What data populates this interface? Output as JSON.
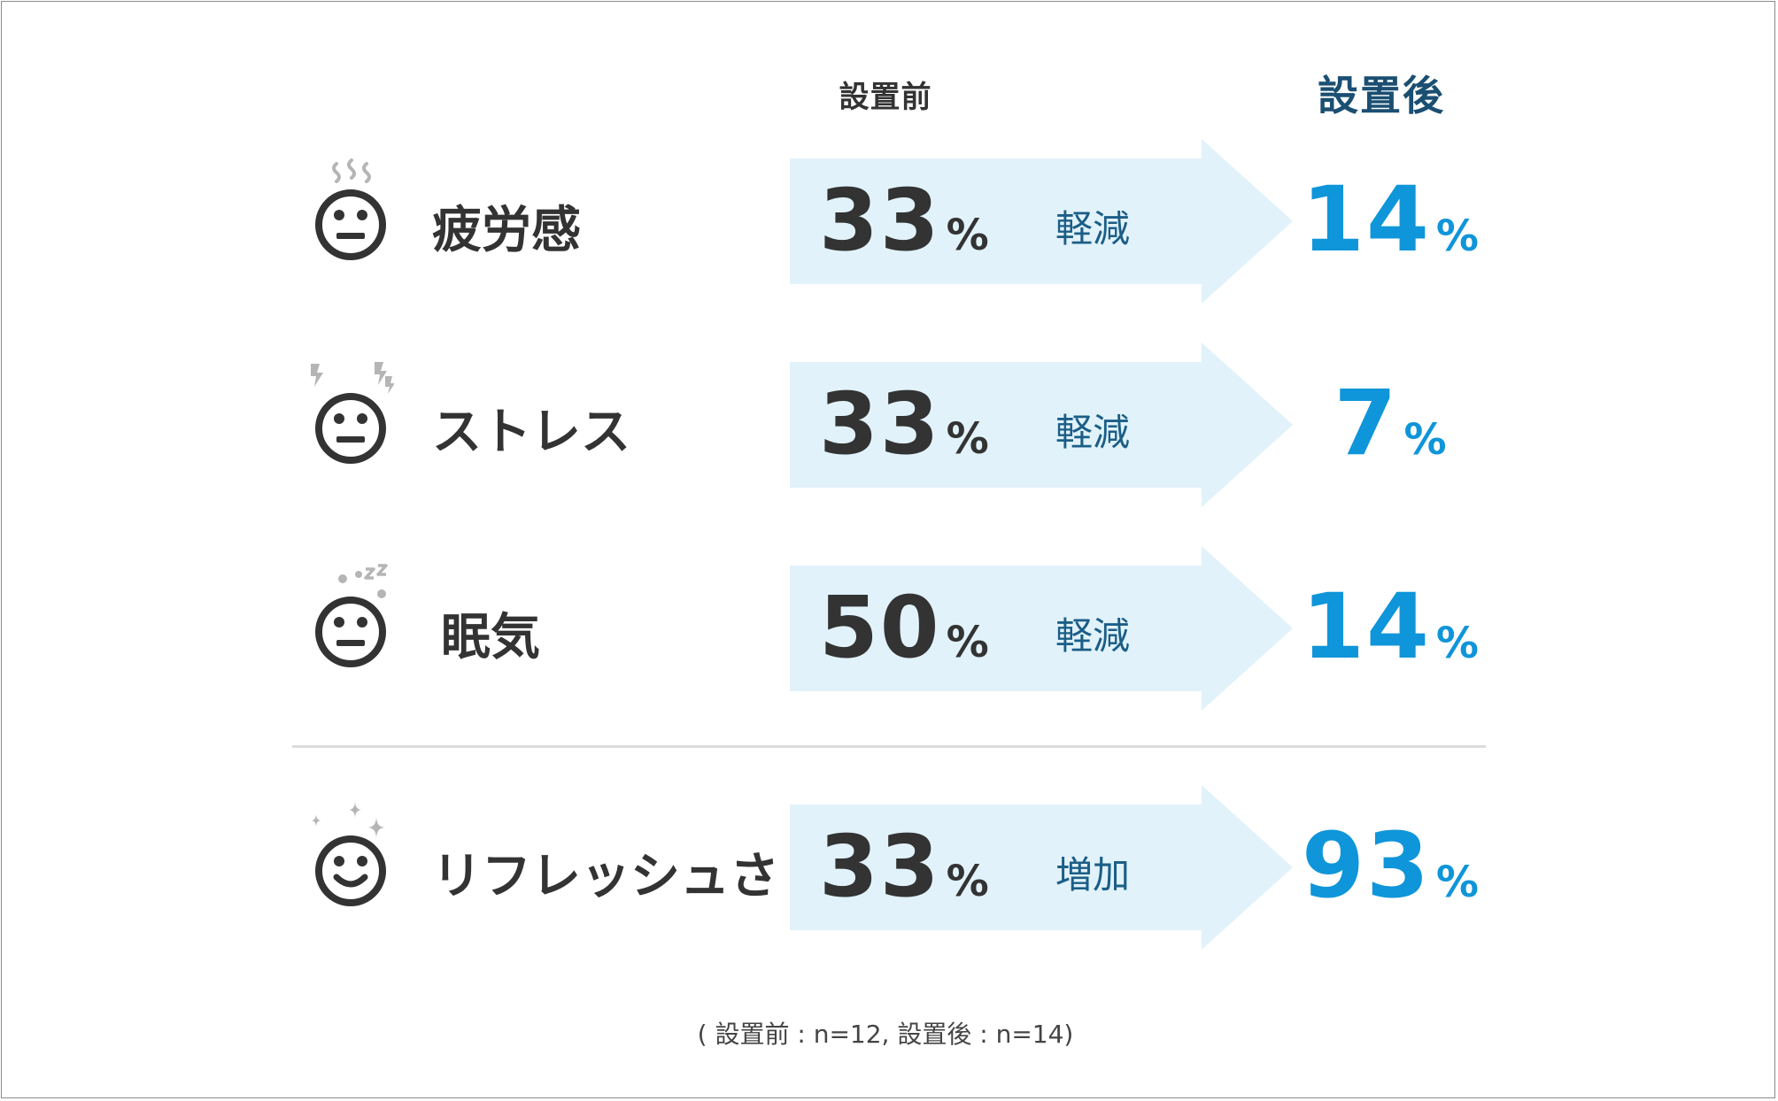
{
  "header": {
    "before": "設置前",
    "after": "設置後"
  },
  "chart_data": {
    "type": "table",
    "columns": [
      "設置前",
      "設置後"
    ],
    "unit": "%",
    "rows": [
      {
        "label": "疲労感",
        "before": 33,
        "after": 14,
        "change": "軽減",
        "icon": "tired-face-icon"
      },
      {
        "label": "ストレス",
        "before": 33,
        "after": 7,
        "change": "軽減",
        "icon": "stressed-face-icon"
      },
      {
        "label": "眠気",
        "before": 50,
        "after": 14,
        "change": "軽減",
        "icon": "sleepy-face-icon"
      },
      {
        "label": "リフレッシュさ",
        "before": 33,
        "after": 93,
        "change": "増加",
        "icon": "refreshed-face-icon"
      }
    ]
  },
  "footnote": "( 設置前 : n=12, 設置後 : n=14)",
  "colors": {
    "arrow": "#e1f2fa",
    "accent": "#0f95d9",
    "header_after": "#1a4f72",
    "text": "#333333",
    "change_text": "#1b5e87",
    "icon_decor": "#b5b5b5"
  }
}
